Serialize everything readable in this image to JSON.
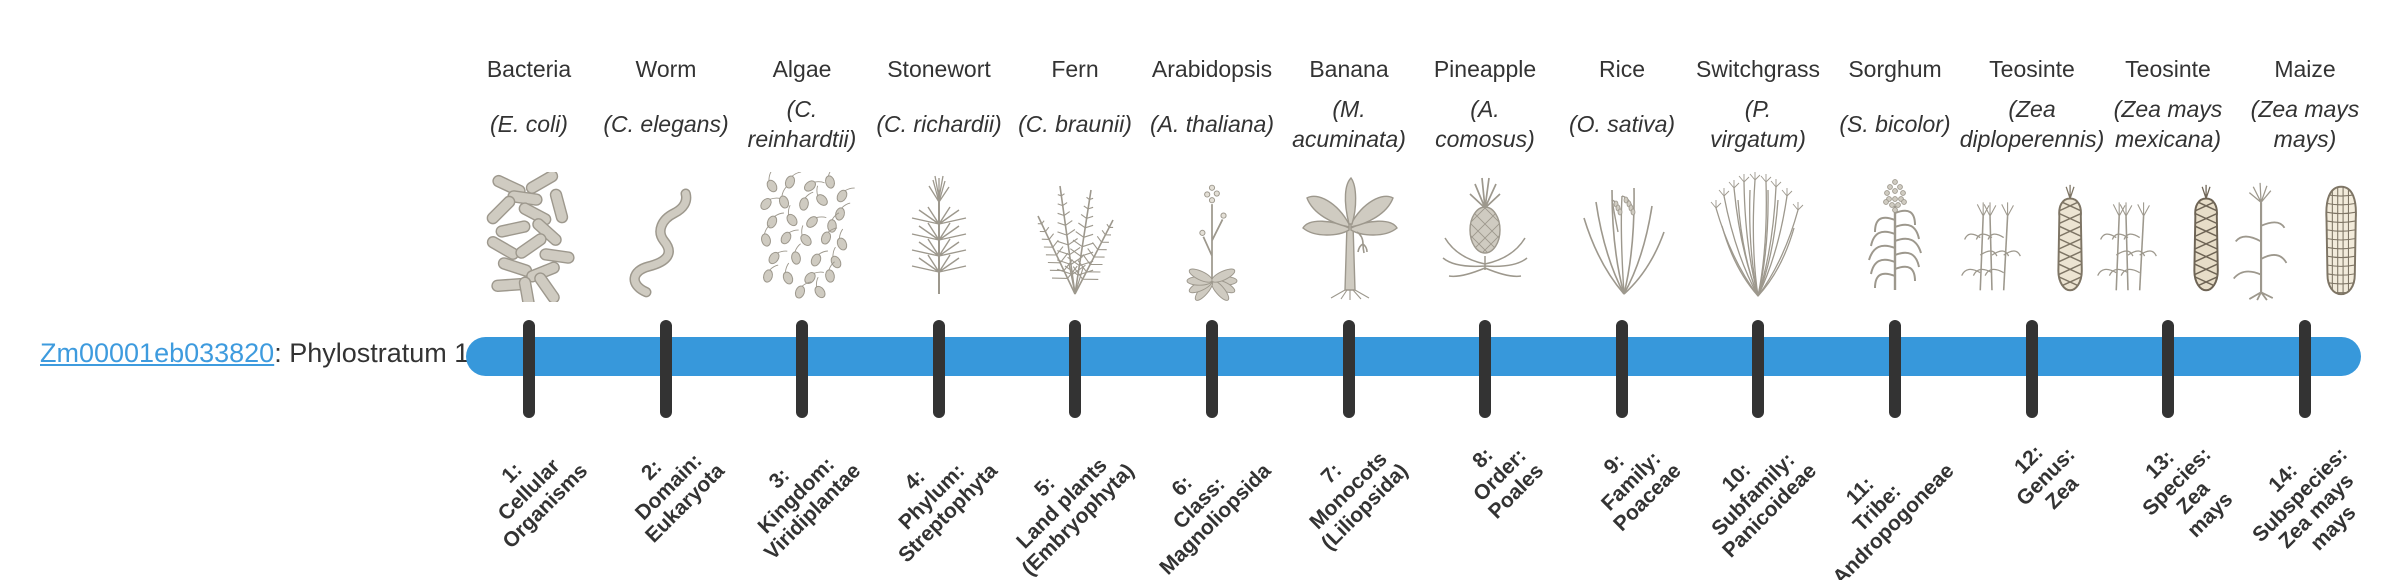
{
  "page": {
    "background": "#ffffff"
  },
  "row_label": {
    "gene_id": "Zm00001eb033820",
    "suffix": ": Phylostratum 1",
    "link_color": "#3e9bde"
  },
  "timeline": {
    "bar_color": "#3798db",
    "tick_color": "#333333",
    "num_strata": 14
  },
  "taxa": [
    {
      "name": "Bacteria",
      "species": "(E. coli)",
      "stratum": "1:\nCellular\nOrganisms",
      "icon": "bacteria-icon"
    },
    {
      "name": "Worm",
      "species": "(C. elegans)",
      "stratum": "2:\nDomain:\nEukaryota",
      "icon": "worm-icon"
    },
    {
      "name": "Algae",
      "species": "(C.\nreinhardtii)",
      "stratum": "3:\nKingdom:\nViridiplantae",
      "icon": "algae-icon"
    },
    {
      "name": "Stonewort",
      "species": "(C. richardii)",
      "stratum": "4:\nPhylum:\nStreptophyta",
      "icon": "stonewort-icon"
    },
    {
      "name": "Fern",
      "species": "(C. braunii)",
      "stratum": "5:\nLand plants\n(Embryophyta)",
      "icon": "fern-icon"
    },
    {
      "name": "Arabidopsis",
      "species": "(A. thaliana)",
      "stratum": "6:\nClass:\nMagnoliopsida",
      "icon": "arabidopsis-icon"
    },
    {
      "name": "Banana",
      "species": "(M.\nacuminata)",
      "stratum": "7:\nMonocots\n(Liliopsida)",
      "icon": "banana-icon"
    },
    {
      "name": "Pineapple",
      "species": "(A.\ncomosus)",
      "stratum": "8:\nOrder:\nPoales",
      "icon": "pineapple-icon"
    },
    {
      "name": "Rice",
      "species": "(O. sativa)",
      "stratum": "9:\nFamily:\nPoaceae",
      "icon": "rice-icon"
    },
    {
      "name": "Switchgrass",
      "species": "(P.\nvirgatum)",
      "stratum": "10:\nSubfamily:\nPanicoideae",
      "icon": "switchgrass-icon"
    },
    {
      "name": "Sorghum",
      "species": "(S. bicolor)",
      "stratum": "11:\nTribe:\nAndropogoneae",
      "icon": "sorghum-icon"
    },
    {
      "name": "Teosinte",
      "species": "(Zea\ndiploperennis)",
      "stratum": "12:\nGenus:\nZea",
      "icon": "teosinte-diploperennis-icon"
    },
    {
      "name": "Teosinte",
      "species": "(Zea mays\nmexicana)",
      "stratum": "13:\nSpecies:\nZea\nmays",
      "icon": "teosinte-mexicana-icon"
    },
    {
      "name": "Maize",
      "species": "(Zea mays\nmays)",
      "stratum": "14:\nSubspecies:\nZea mays\nmays",
      "icon": "maize-icon"
    }
  ]
}
